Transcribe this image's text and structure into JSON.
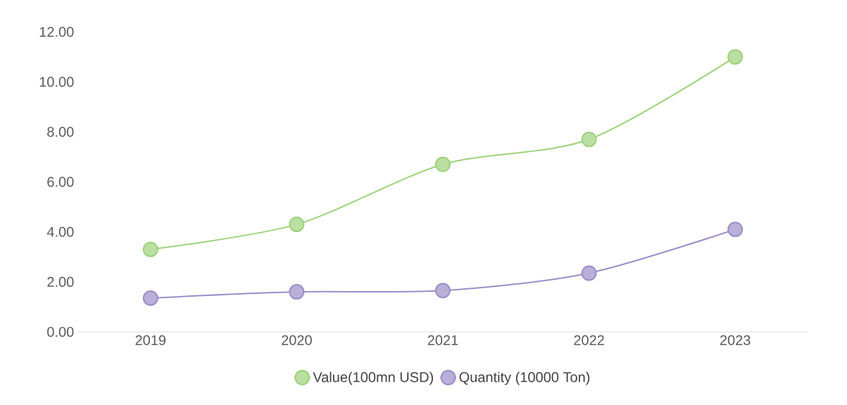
{
  "chart_data": {
    "type": "line",
    "categories": [
      "2019",
      "2020",
      "2021",
      "2022",
      "2023"
    ],
    "series": [
      {
        "name": "Value(100mn USD)",
        "color": "#9dd27a",
        "values": [
          3.3,
          4.3,
          6.7,
          7.7,
          11.0
        ]
      },
      {
        "name": "Quantity (10000 Ton)",
        "color": "#9b8dc9",
        "values": [
          1.35,
          1.6,
          1.65,
          2.35,
          4.1
        ]
      }
    ],
    "ylim": [
      0,
      12
    ],
    "yticks": [
      {
        "value": 0,
        "label": "0.00"
      },
      {
        "value": 2,
        "label": "2.00"
      },
      {
        "value": 4,
        "label": "4.00"
      },
      {
        "value": 6,
        "label": "6.00"
      },
      {
        "value": 8,
        "label": "8.00"
      },
      {
        "value": 10,
        "label": "10.00"
      },
      {
        "value": 12,
        "label": "12.00"
      }
    ],
    "grid": false,
    "legend": "bottom",
    "marker": "circle",
    "line_style": "solid"
  }
}
